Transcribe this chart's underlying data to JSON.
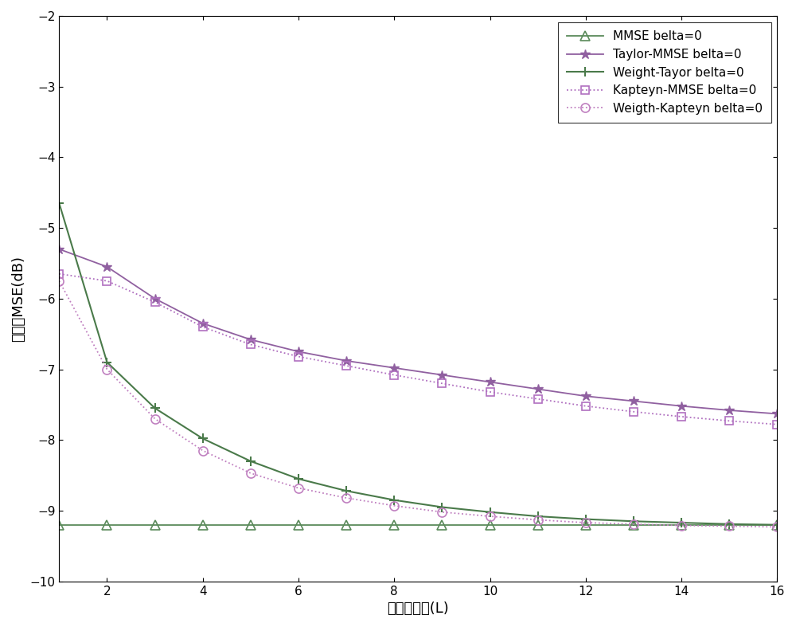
{
  "x": [
    1,
    2,
    3,
    4,
    5,
    6,
    7,
    8,
    9,
    10,
    11,
    12,
    13,
    14,
    15,
    16
  ],
  "mmse": [
    -9.2,
    -9.2,
    -9.2,
    -9.2,
    -9.2,
    -9.2,
    -9.2,
    -9.2,
    -9.2,
    -9.2,
    -9.2,
    -9.2,
    -9.2,
    -9.2,
    -9.2,
    -9.2
  ],
  "taylor_mmse": [
    -5.3,
    -5.55,
    -6.0,
    -6.35,
    -6.58,
    -6.75,
    -6.88,
    -6.98,
    -7.08,
    -7.18,
    -7.28,
    -7.38,
    -7.45,
    -7.52,
    -7.58,
    -7.63
  ],
  "weight_tayor": [
    -4.65,
    -6.9,
    -7.55,
    -7.98,
    -8.3,
    -8.55,
    -8.72,
    -8.85,
    -8.95,
    -9.02,
    -9.08,
    -9.12,
    -9.15,
    -9.17,
    -9.19,
    -9.2
  ],
  "kapteyn_mmse": [
    -5.65,
    -5.75,
    -6.05,
    -6.4,
    -6.65,
    -6.82,
    -6.95,
    -7.08,
    -7.2,
    -7.32,
    -7.42,
    -7.52,
    -7.6,
    -7.67,
    -7.73,
    -7.78
  ],
  "weigth_kapteyn": [
    -5.75,
    -7.0,
    -7.7,
    -8.15,
    -8.47,
    -8.68,
    -8.82,
    -8.93,
    -9.02,
    -9.08,
    -9.13,
    -9.17,
    -9.19,
    -9.21,
    -9.22,
    -9.23
  ],
  "xlabel": "多项式阶数(L)",
  "ylabel": "归一化MSE(dB)",
  "ylim": [
    -10,
    -2
  ],
  "xlim": [
    1,
    16
  ],
  "legend_mmse": "MMSE belta=0",
  "legend_taylor": "Taylor-MMSE belta=0",
  "legend_weight_tayor": "Weight-Tayor belta=0",
  "legend_kapteyn": "Kapteyn-MMSE belta=0",
  "legend_weigth_kapteyn": "Weigth-Kapteyn belta=0"
}
